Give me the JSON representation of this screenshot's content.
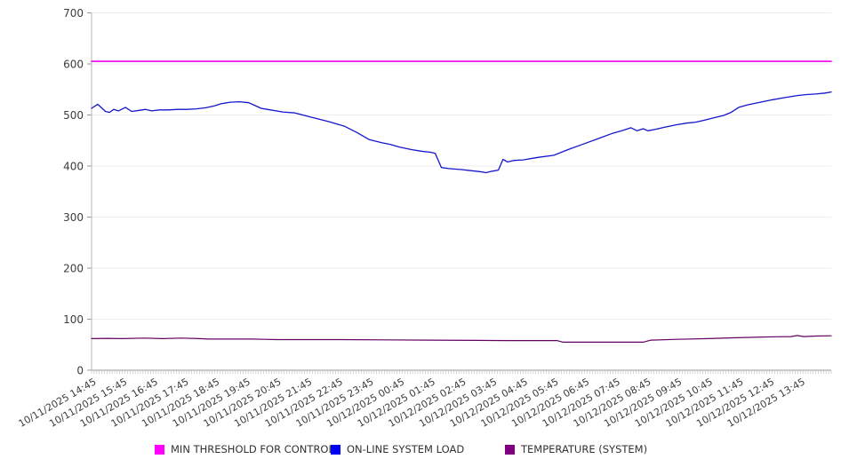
{
  "chart_data": {
    "type": "line",
    "title": "",
    "xlabel": "",
    "ylabel": "",
    "ylim": [
      0,
      700
    ],
    "y_ticks": [
      0,
      100,
      200,
      300,
      400,
      500,
      600,
      700
    ],
    "grid": true,
    "legend_position": "bottom",
    "x_hours_span": 24,
    "minor_tick_count": 288,
    "categories": [
      "10/11/2025 14:45",
      "10/11/2025 15:45",
      "10/11/2025 16:45",
      "10/11/2025 17:45",
      "10/11/2025 18:45",
      "10/11/2025 19:45",
      "10/11/2025 20:45",
      "10/11/2025 21:45",
      "10/11/2025 22:45",
      "10/11/2025 23:45",
      "10/12/2025 00:45",
      "10/12/2025 01:45",
      "10/12/2025 02:45",
      "10/12/2025 03:45",
      "10/12/2025 04:45",
      "10/12/2025 05:45",
      "10/12/2025 06:45",
      "10/12/2025 07:45",
      "10/12/2025 08:45",
      "10/12/2025 09:45",
      "10/12/2025 10:45",
      "10/12/2025 11:45",
      "10/12/2025 12:45",
      "10/12/2025 13:45"
    ],
    "series": [
      {
        "name": "MIN THRESHOLD FOR CONTROL",
        "color": "#ee00ee",
        "swatch": "#ff00ff",
        "width": 1.6,
        "points": [
          [
            0,
            605
          ],
          [
            24,
            605
          ]
        ]
      },
      {
        "name": "ON-LINE SYSTEM LOAD",
        "color": "#1515cd",
        "swatch": "#0000ee",
        "width": 1.3,
        "points": [
          [
            0,
            513
          ],
          [
            0.2,
            521
          ],
          [
            0.45,
            507
          ],
          [
            0.58,
            505
          ],
          [
            0.72,
            511
          ],
          [
            0.87,
            508
          ],
          [
            1.1,
            515
          ],
          [
            1.3,
            507
          ],
          [
            1.55,
            509
          ],
          [
            1.75,
            511
          ],
          [
            1.95,
            508
          ],
          [
            2.2,
            510
          ],
          [
            2.5,
            510
          ],
          [
            2.8,
            511
          ],
          [
            3.1,
            511
          ],
          [
            3.4,
            512
          ],
          [
            3.7,
            514
          ],
          [
            4.0,
            518
          ],
          [
            4.2,
            522
          ],
          [
            4.5,
            525
          ],
          [
            4.8,
            526
          ],
          [
            5.1,
            524
          ],
          [
            5.25,
            520
          ],
          [
            5.5,
            513
          ],
          [
            5.7,
            511
          ],
          [
            6.2,
            506
          ],
          [
            6.6,
            504
          ],
          [
            7.1,
            496
          ],
          [
            7.7,
            487
          ],
          [
            8.2,
            478
          ],
          [
            8.6,
            466
          ],
          [
            9.0,
            452
          ],
          [
            9.4,
            446
          ],
          [
            9.7,
            442
          ],
          [
            10.0,
            437
          ],
          [
            10.4,
            432
          ],
          [
            10.7,
            429
          ],
          [
            11.0,
            427
          ],
          [
            11.15,
            425
          ],
          [
            11.35,
            397
          ],
          [
            11.6,
            395
          ],
          [
            12.0,
            393
          ],
          [
            12.3,
            391
          ],
          [
            12.6,
            389
          ],
          [
            12.8,
            387
          ],
          [
            13.0,
            390
          ],
          [
            13.2,
            392
          ],
          [
            13.35,
            413
          ],
          [
            13.5,
            408
          ],
          [
            13.7,
            411
          ],
          [
            14.0,
            412
          ],
          [
            14.5,
            417
          ],
          [
            15.0,
            421
          ],
          [
            15.5,
            433
          ],
          [
            16.0,
            444
          ],
          [
            16.5,
            455
          ],
          [
            16.9,
            464
          ],
          [
            17.25,
            470
          ],
          [
            17.5,
            475
          ],
          [
            17.7,
            469
          ],
          [
            17.9,
            473
          ],
          [
            18.05,
            469
          ],
          [
            18.3,
            472
          ],
          [
            18.6,
            476
          ],
          [
            19.0,
            481
          ],
          [
            19.3,
            484
          ],
          [
            19.6,
            486
          ],
          [
            19.9,
            490
          ],
          [
            20.1,
            493
          ],
          [
            20.3,
            496
          ],
          [
            20.5,
            499
          ],
          [
            20.75,
            505
          ],
          [
            21.0,
            515
          ],
          [
            21.3,
            520
          ],
          [
            21.7,
            525
          ],
          [
            22.1,
            530
          ],
          [
            22.5,
            534
          ],
          [
            22.9,
            538
          ],
          [
            23.2,
            540
          ],
          [
            23.5,
            541
          ],
          [
            23.8,
            543
          ],
          [
            24.0,
            545
          ]
        ]
      },
      {
        "name": "TEMPERATURE (SYSTEM)",
        "color": "#640064",
        "swatch": "#800080",
        "width": 1.2,
        "points": [
          [
            0,
            62
          ],
          [
            0.5,
            62.5
          ],
          [
            1.0,
            62
          ],
          [
            1.7,
            63
          ],
          [
            2.3,
            62
          ],
          [
            2.9,
            63
          ],
          [
            3.5,
            62
          ],
          [
            3.8,
            61
          ],
          [
            5.2,
            61
          ],
          [
            5.6,
            60.5
          ],
          [
            6.0,
            60
          ],
          [
            8.0,
            60
          ],
          [
            9.5,
            59.5
          ],
          [
            11.0,
            59
          ],
          [
            12.5,
            58.5
          ],
          [
            13.5,
            58
          ],
          [
            15.1,
            58
          ],
          [
            15.3,
            55
          ],
          [
            17.9,
            55
          ],
          [
            18.15,
            59
          ],
          [
            19.0,
            60.5
          ],
          [
            20.0,
            62
          ],
          [
            20.8,
            63.5
          ],
          [
            21.5,
            64.5
          ],
          [
            22.2,
            65.5
          ],
          [
            22.7,
            66
          ],
          [
            22.9,
            68
          ],
          [
            23.1,
            66
          ],
          [
            23.5,
            67
          ],
          [
            24,
            67.5
          ]
        ]
      }
    ]
  }
}
